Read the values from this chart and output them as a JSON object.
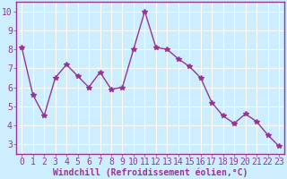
{
  "x": [
    0,
    1,
    2,
    3,
    4,
    5,
    6,
    7,
    8,
    9,
    10,
    11,
    12,
    13,
    14,
    15,
    16,
    17,
    18,
    19,
    20,
    21,
    22,
    23
  ],
  "y": [
    8.1,
    5.6,
    4.5,
    6.5,
    7.2,
    6.6,
    6.0,
    6.8,
    5.9,
    6.0,
    8.0,
    10.0,
    8.1,
    8.0,
    7.5,
    7.1,
    6.5,
    5.2,
    4.5,
    4.1,
    4.6,
    4.2,
    3.5,
    2.9
  ],
  "line_color": "#993399",
  "marker": "*",
  "marker_size": 4,
  "line_width": 1.0,
  "background_color": "#cceeff",
  "grid_color": "#ffffff",
  "xlabel": "Windchill (Refroidissement éolien,°C)",
  "xlabel_fontsize": 7,
  "tick_label_fontsize": 7,
  "ylim": [
    2.5,
    10.5
  ],
  "xlim": [
    -0.5,
    23.5
  ],
  "yticks": [
    3,
    4,
    5,
    6,
    7,
    8,
    9,
    10
  ],
  "xticks": [
    0,
    1,
    2,
    3,
    4,
    5,
    6,
    7,
    8,
    9,
    10,
    11,
    12,
    13,
    14,
    15,
    16,
    17,
    18,
    19,
    20,
    21,
    22,
    23
  ],
  "spine_color": "#993399",
  "fig_width": 3.2,
  "fig_height": 2.0,
  "dpi": 100
}
